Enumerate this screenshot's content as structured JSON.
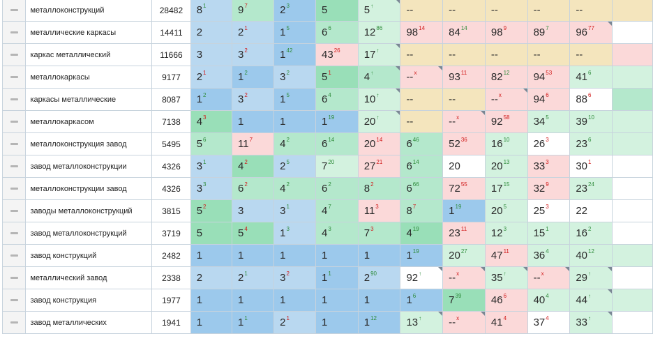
{
  "rows": [
    {
      "kw": "металлоконструкций",
      "freq": "28482",
      "cells": [
        [
          "8",
          "1",
          "u",
          "b-light"
        ],
        [
          "9",
          "7",
          "d",
          "g-light"
        ],
        [
          "2",
          "3",
          "u",
          "b-dark"
        ],
        [
          "5",
          "",
          "",
          "g-dark"
        ],
        [
          "5",
          "↑",
          "u",
          "g-pale"
        ],
        [
          "--",
          "",
          "",
          "y"
        ],
        [
          "--",
          "",
          "",
          "y"
        ],
        [
          "--",
          "",
          "",
          "y"
        ],
        [
          "--",
          "",
          "",
          "y"
        ],
        [
          "--",
          "",
          "",
          "y"
        ],
        [
          "",
          "",
          "",
          "y"
        ]
      ]
    },
    {
      "kw": "металлические каркасы",
      "freq": "14411",
      "cells": [
        [
          "2",
          "",
          "",
          "b-light"
        ],
        [
          "2",
          "1",
          "d",
          "b-light"
        ],
        [
          "1",
          "5",
          "u",
          "b-dark"
        ],
        [
          "6",
          "6",
          "u",
          "g-light"
        ],
        [
          "12",
          "86",
          "u",
          "g-pale"
        ],
        [
          "98",
          "14",
          "d",
          "r-light"
        ],
        [
          "84",
          "14",
          "u",
          "r-light"
        ],
        [
          "98",
          "9",
          "d",
          "r-light"
        ],
        [
          "89",
          "7",
          "u",
          "r-light"
        ],
        [
          "96",
          "77",
          "d",
          "r-light"
        ],
        [
          "",
          "",
          "",
          "w"
        ]
      ]
    },
    {
      "kw": "каркас металлический",
      "freq": "11666",
      "cells": [
        [
          "3",
          "",
          "",
          "b-light"
        ],
        [
          "3",
          "2",
          "d",
          "b-light"
        ],
        [
          "1",
          "42",
          "u",
          "b-dark"
        ],
        [
          "43",
          "26",
          "d",
          "r-light"
        ],
        [
          "17",
          "↑",
          "u",
          "g-pale"
        ],
        [
          "--",
          "",
          "",
          "y"
        ],
        [
          "--",
          "",
          "",
          "y"
        ],
        [
          "--",
          "",
          "",
          "y"
        ],
        [
          "--",
          "",
          "",
          "y"
        ],
        [
          "--",
          "",
          "",
          "y"
        ],
        [
          "",
          "",
          "",
          "r-light"
        ]
      ]
    },
    {
      "kw": "металлокаркасы",
      "freq": "9177",
      "cells": [
        [
          "2",
          "1",
          "d",
          "b-light"
        ],
        [
          "1",
          "2",
          "u",
          "b-dark"
        ],
        [
          "3",
          "2",
          "u",
          "b-light"
        ],
        [
          "5",
          "1",
          "d",
          "g-dark"
        ],
        [
          "4",
          "↑",
          "u",
          "g-light"
        ],
        [
          "--",
          "x",
          "d",
          "r-light"
        ],
        [
          "93",
          "11",
          "d",
          "r-light"
        ],
        [
          "82",
          "12",
          "u",
          "r-light"
        ],
        [
          "94",
          "53",
          "d",
          "r-light"
        ],
        [
          "41",
          "6",
          "u",
          "g-pale"
        ],
        [
          "",
          "",
          "",
          "g-pale"
        ]
      ]
    },
    {
      "kw": "каркасы металлические",
      "freq": "8087",
      "cells": [
        [
          "1",
          "2",
          "u",
          "b-dark"
        ],
        [
          "3",
          "2",
          "d",
          "b-light"
        ],
        [
          "1",
          "5",
          "u",
          "b-dark"
        ],
        [
          "6",
          "4",
          "u",
          "g-light"
        ],
        [
          "10",
          "↑",
          "u",
          "g-pale"
        ],
        [
          "--",
          "",
          "",
          "y"
        ],
        [
          "--",
          "",
          "",
          "y"
        ],
        [
          "--",
          "x",
          "d",
          "r-light"
        ],
        [
          "94",
          "6",
          "d",
          "r-light"
        ],
        [
          "88",
          "6",
          "d",
          "w"
        ],
        [
          "",
          "",
          "",
          "g-light"
        ]
      ]
    },
    {
      "kw": "металлокаркасом",
      "freq": "7138",
      "cells": [
        [
          "4",
          "3",
          "d",
          "g-dark"
        ],
        [
          "1",
          "",
          "",
          "b-dark"
        ],
        [
          "1",
          "",
          "",
          "b-dark"
        ],
        [
          "1",
          "19",
          "u",
          "b-dark"
        ],
        [
          "20",
          "↑",
          "u",
          "g-pale"
        ],
        [
          "--",
          "",
          "",
          "y"
        ],
        [
          "--",
          "x",
          "d",
          "r-light"
        ],
        [
          "92",
          "58",
          "d",
          "r-light"
        ],
        [
          "34",
          "5",
          "u",
          "g-pale"
        ],
        [
          "39",
          "10",
          "u",
          "g-pale"
        ],
        [
          "",
          "",
          "",
          "g-pale"
        ]
      ]
    },
    {
      "kw": "металлоконструкция завод",
      "freq": "5495",
      "cells": [
        [
          "5",
          "6",
          "u",
          "g-light"
        ],
        [
          "11",
          "7",
          "d",
          "r-light"
        ],
        [
          "4",
          "2",
          "u",
          "g-light"
        ],
        [
          "6",
          "14",
          "u",
          "g-light"
        ],
        [
          "20",
          "14",
          "d",
          "r-light"
        ],
        [
          "6",
          "46",
          "u",
          "g-light"
        ],
        [
          "52",
          "36",
          "d",
          "r-light"
        ],
        [
          "16",
          "10",
          "u",
          "g-pale"
        ],
        [
          "26",
          "3",
          "d",
          "w"
        ],
        [
          "23",
          "6",
          "u",
          "g-pale"
        ],
        [
          "",
          "",
          "",
          "g-pale"
        ]
      ]
    },
    {
      "kw": "завод металлоконструкции",
      "freq": "4326",
      "cells": [
        [
          "3",
          "1",
          "u",
          "b-light"
        ],
        [
          "4",
          "2",
          "d",
          "g-dark"
        ],
        [
          "2",
          "5",
          "u",
          "b-light"
        ],
        [
          "7",
          "20",
          "u",
          "g-pale"
        ],
        [
          "27",
          "21",
          "d",
          "r-light"
        ],
        [
          "6",
          "14",
          "u",
          "g-light"
        ],
        [
          "20",
          "",
          "",
          "w"
        ],
        [
          "20",
          "13",
          "u",
          "g-pale"
        ],
        [
          "33",
          "3",
          "d",
          "r-light"
        ],
        [
          "30",
          "1",
          "d",
          "w"
        ],
        [
          "",
          "",
          "",
          "w"
        ]
      ]
    },
    {
      "kw": "металлоконструкции завод",
      "freq": "4326",
      "cells": [
        [
          "3",
          "3",
          "u",
          "b-light"
        ],
        [
          "6",
          "2",
          "d",
          "g-light"
        ],
        [
          "4",
          "2",
          "u",
          "g-light"
        ],
        [
          "6",
          "2",
          "u",
          "g-light"
        ],
        [
          "8",
          "2",
          "d",
          "g-light"
        ],
        [
          "6",
          "66",
          "u",
          "g-light"
        ],
        [
          "72",
          "55",
          "d",
          "r-light"
        ],
        [
          "17",
          "15",
          "u",
          "g-pale"
        ],
        [
          "32",
          "9",
          "d",
          "r-light"
        ],
        [
          "23",
          "24",
          "u",
          "g-pale"
        ],
        [
          "",
          "",
          "",
          "w"
        ]
      ]
    },
    {
      "kw": "заводы металлоконструкций",
      "freq": "3815",
      "cells": [
        [
          "5",
          "2",
          "d",
          "g-dark"
        ],
        [
          "3",
          "",
          "",
          "b-light"
        ],
        [
          "3",
          "1",
          "u",
          "b-light"
        ],
        [
          "4",
          "7",
          "u",
          "g-light"
        ],
        [
          "11",
          "3",
          "d",
          "r-light"
        ],
        [
          "8",
          "7",
          "d",
          "g-light"
        ],
        [
          "1",
          "19",
          "u",
          "b-dark"
        ],
        [
          "20",
          "5",
          "u",
          "g-pale"
        ],
        [
          "25",
          "3",
          "d",
          "w"
        ],
        [
          "22",
          "",
          "",
          "w"
        ],
        [
          "",
          "",
          "",
          "w"
        ]
      ]
    },
    {
      "kw": "завод металлоконструкций",
      "freq": "3719",
      "cells": [
        [
          "5",
          "",
          "",
          "g-dark"
        ],
        [
          "5",
          "4",
          "d",
          "g-dark"
        ],
        [
          "1",
          "3",
          "u",
          "b-light"
        ],
        [
          "4",
          "3",
          "u",
          "g-light"
        ],
        [
          "7",
          "3",
          "d",
          "g-light"
        ],
        [
          "4",
          "19",
          "u",
          "g-dark"
        ],
        [
          "23",
          "11",
          "d",
          "r-light"
        ],
        [
          "12",
          "3",
          "u",
          "g-pale"
        ],
        [
          "15",
          "1",
          "u",
          "g-pale"
        ],
        [
          "16",
          "2",
          "u",
          "g-pale"
        ],
        [
          "",
          "",
          "",
          "w"
        ]
      ]
    },
    {
      "kw": "завод конструкций",
      "freq": "2482",
      "cells": [
        [
          "1",
          "",
          "",
          "b-dark"
        ],
        [
          "1",
          "",
          "",
          "b-dark"
        ],
        [
          "1",
          "",
          "",
          "b-dark"
        ],
        [
          "1",
          "",
          "",
          "b-dark"
        ],
        [
          "1",
          "",
          "",
          "b-dark"
        ],
        [
          "1",
          "19",
          "u",
          "b-dark"
        ],
        [
          "20",
          "27",
          "u",
          "g-pale"
        ],
        [
          "47",
          "11",
          "d",
          "r-light"
        ],
        [
          "36",
          "4",
          "u",
          "g-pale"
        ],
        [
          "40",
          "12",
          "u",
          "g-pale"
        ],
        [
          "",
          "",
          "",
          "g-pale"
        ]
      ]
    },
    {
      "kw": "металлический завод",
      "freq": "2338",
      "cells": [
        [
          "2",
          "",
          "",
          "b-light"
        ],
        [
          "2",
          "1",
          "u",
          "b-light"
        ],
        [
          "3",
          "2",
          "d",
          "b-light"
        ],
        [
          "1",
          "1",
          "u",
          "b-dark"
        ],
        [
          "2",
          "90",
          "u",
          "b-light"
        ],
        [
          "92",
          "↑",
          "u",
          "w"
        ],
        [
          "--",
          "x",
          "d",
          "r-light"
        ],
        [
          "35",
          "↑",
          "u",
          "g-pale"
        ],
        [
          "--",
          "x",
          "d",
          "r-light"
        ],
        [
          "29",
          "↑",
          "u",
          "g-pale"
        ],
        [
          "",
          "",
          "",
          "w"
        ]
      ]
    },
    {
      "kw": "завод конструкция",
      "freq": "1977",
      "cells": [
        [
          "1",
          "",
          "",
          "b-dark"
        ],
        [
          "1",
          "",
          "",
          "b-dark"
        ],
        [
          "1",
          "",
          "",
          "b-dark"
        ],
        [
          "1",
          "",
          "",
          "b-dark"
        ],
        [
          "1",
          "",
          "",
          "b-dark"
        ],
        [
          "1",
          "6",
          "u",
          "b-dark"
        ],
        [
          "7",
          "39",
          "u",
          "g-dark"
        ],
        [
          "46",
          "6",
          "d",
          "r-light"
        ],
        [
          "40",
          "4",
          "u",
          "g-pale"
        ],
        [
          "44",
          "↑",
          "u",
          "g-pale"
        ],
        [
          "",
          "",
          "",
          "g-pale"
        ]
      ]
    },
    {
      "kw": "завод металлических",
      "freq": "1941",
      "cells": [
        [
          "1",
          "",
          "",
          "b-dark"
        ],
        [
          "1",
          "1",
          "u",
          "b-dark"
        ],
        [
          "2",
          "1",
          "d",
          "b-light"
        ],
        [
          "1",
          "",
          "",
          "b-dark"
        ],
        [
          "1",
          "12",
          "u",
          "b-dark"
        ],
        [
          "13",
          "↑",
          "u",
          "g-pale"
        ],
        [
          "--",
          "x",
          "d",
          "r-light"
        ],
        [
          "41",
          "4",
          "d",
          "r-light"
        ],
        [
          "37",
          "4",
          "d",
          "w"
        ],
        [
          "33",
          "↑",
          "u",
          "g-pale"
        ],
        [
          "",
          "",
          "",
          "w"
        ]
      ]
    }
  ]
}
